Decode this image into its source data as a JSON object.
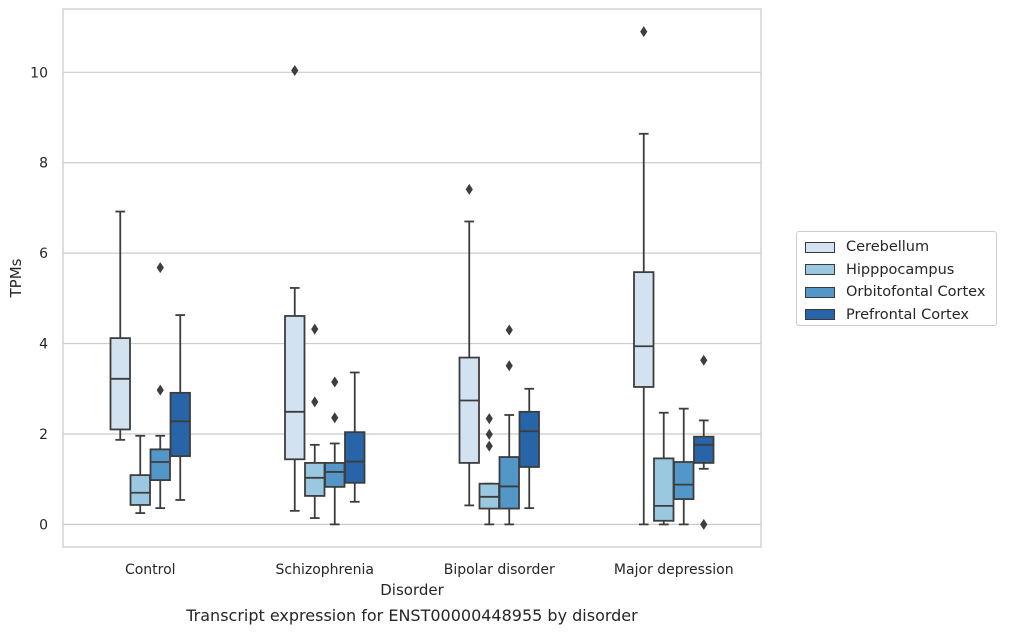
{
  "caption": "Transcript expression for ENST00000448955 by disorder",
  "chart_data": {
    "type": "box",
    "xlabel": "Disorder",
    "ylabel": "TPMs",
    "ylim": [
      -0.5,
      11.4
    ],
    "yticks": [
      0,
      2,
      4,
      6,
      8,
      10
    ],
    "grid": true,
    "legend_position": "right",
    "categories": [
      "Control",
      "Schizophrenia",
      "Bipolar disorder",
      "Major depression"
    ],
    "series": [
      {
        "name": "Cerebellum",
        "color": "#d2e2f1",
        "boxes": [
          {
            "whislo": 1.87,
            "q1": 2.1,
            "med": 3.22,
            "q3": 4.12,
            "whishi": 6.92,
            "fliers": []
          },
          {
            "whislo": 0.3,
            "q1": 1.44,
            "med": 2.49,
            "q3": 4.61,
            "whishi": 5.23,
            "fliers": [
              10.04
            ]
          },
          {
            "whislo": 0.42,
            "q1": 1.36,
            "med": 2.74,
            "q3": 3.69,
            "whishi": 6.7,
            "fliers": [
              7.41
            ]
          },
          {
            "whislo": 0.0,
            "q1": 3.04,
            "med": 3.94,
            "q3": 5.58,
            "whishi": 8.64,
            "fliers": [
              10.9
            ]
          }
        ]
      },
      {
        "name": "Hipppocampus",
        "color": "#9ac8e0",
        "boxes": [
          {
            "whislo": 0.25,
            "q1": 0.43,
            "med": 0.7,
            "q3": 1.09,
            "whishi": 1.96,
            "fliers": []
          },
          {
            "whislo": 0.14,
            "q1": 0.63,
            "med": 1.03,
            "q3": 1.36,
            "whishi": 1.76,
            "fliers": [
              4.32,
              2.71
            ]
          },
          {
            "whislo": 0.0,
            "q1": 0.35,
            "med": 0.61,
            "q3": 0.9,
            "whishi": 0.9,
            "fliers": [
              2.34,
              1.99,
              1.73
            ]
          },
          {
            "whislo": 0.0,
            "q1": 0.08,
            "med": 0.41,
            "q3": 1.46,
            "whishi": 2.47,
            "fliers": []
          }
        ]
      },
      {
        "name": "Orbitofontal Cortex",
        "color": "#5297c7",
        "boxes": [
          {
            "whislo": 0.36,
            "q1": 0.98,
            "med": 1.38,
            "q3": 1.66,
            "whishi": 1.96,
            "fliers": [
              5.68,
              2.97
            ]
          },
          {
            "whislo": 0.0,
            "q1": 0.83,
            "med": 1.16,
            "q3": 1.36,
            "whishi": 1.79,
            "fliers": [
              3.15,
              2.36
            ]
          },
          {
            "whislo": 0.0,
            "q1": 0.35,
            "med": 0.84,
            "q3": 1.49,
            "whishi": 2.42,
            "fliers": [
              4.3,
              3.51
            ]
          },
          {
            "whislo": 0.0,
            "q1": 0.56,
            "med": 0.88,
            "q3": 1.38,
            "whishi": 2.56,
            "fliers": []
          }
        ]
      },
      {
        "name": "Prefrontal Cortex",
        "color": "#2865a8",
        "boxes": [
          {
            "whislo": 0.54,
            "q1": 1.51,
            "med": 2.28,
            "q3": 2.91,
            "whishi": 4.63,
            "fliers": []
          },
          {
            "whislo": 0.5,
            "q1": 0.92,
            "med": 1.39,
            "q3": 2.04,
            "whishi": 3.36,
            "fliers": []
          },
          {
            "whislo": 0.36,
            "q1": 1.27,
            "med": 2.06,
            "q3": 2.49,
            "whishi": 3.0,
            "fliers": []
          },
          {
            "whislo": 1.23,
            "q1": 1.36,
            "med": 1.76,
            "q3": 1.94,
            "whishi": 2.3,
            "fliers": [
              3.63,
              0.0
            ]
          }
        ]
      }
    ]
  }
}
